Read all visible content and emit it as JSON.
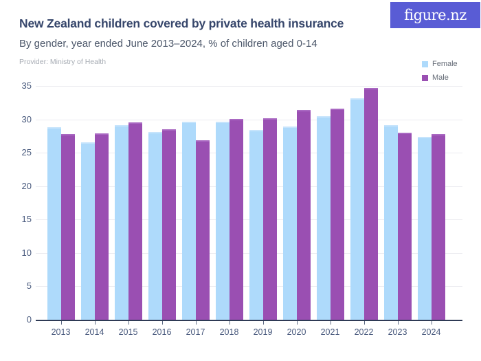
{
  "header": {
    "title": "New Zealand children covered by private health insurance",
    "subtitle": "By gender, year ended June 2013–2024, % of children aged 0-14",
    "provider": "Provider: Ministry of Health",
    "logo_text": "figure.nz"
  },
  "legend": {
    "position": "top-right",
    "items": [
      {
        "label": "Female",
        "color": "#aedafb"
      },
      {
        "label": "Male",
        "color": "#9a4fb2"
      }
    ]
  },
  "colors": {
    "background": "#ffffff",
    "logo_background": "#595cd5",
    "logo_text": "#ffffff",
    "title_text": "#36466b",
    "subtitle_text": "#4b5669",
    "provider_text": "#a7acb4",
    "axis_line": "#2e3a55",
    "axis_label_text": "#47587c",
    "gridline": "#ebebf0",
    "female_bar": "#aedafb",
    "female_bar_cap": "#c6e4fc",
    "male_bar": "#9a4fb2",
    "male_bar_cap": "#a968c2"
  },
  "chart_data": {
    "type": "bar",
    "grouped": true,
    "title": "New Zealand children covered by private health insurance",
    "subtitle": "By gender, year ended June 2013–2024, % of children aged 0-14",
    "provider": "Ministry of Health",
    "categories": [
      "2013",
      "2014",
      "2015",
      "2016",
      "2017",
      "2018",
      "2019",
      "2020",
      "2021",
      "2022",
      "2023",
      "2024"
    ],
    "series": [
      {
        "name": "Female",
        "color": "#aedafb",
        "cap_color": "#c6e4fc",
        "values": [
          28.8,
          26.6,
          29.1,
          28.1,
          29.6,
          29.7,
          28.4,
          28.9,
          30.5,
          33.1,
          29.1,
          27.4
        ]
      },
      {
        "name": "Male",
        "color": "#9a4fb2",
        "cap_color": "#a968c2",
        "values": [
          27.8,
          27.9,
          29.5,
          28.5,
          26.9,
          30.1,
          30.2,
          31.4,
          31.6,
          34.7,
          28.0,
          27.8
        ]
      }
    ],
    "xlabel": "",
    "ylabel": "% of children aged 0-14",
    "ylim": [
      0,
      35
    ],
    "ytick_step": 5,
    "ytick_labels": [
      "0",
      "5",
      "10",
      "15",
      "20",
      "25",
      "30",
      "35"
    ],
    "grid": "horizontal",
    "legend_position": "top-right"
  }
}
